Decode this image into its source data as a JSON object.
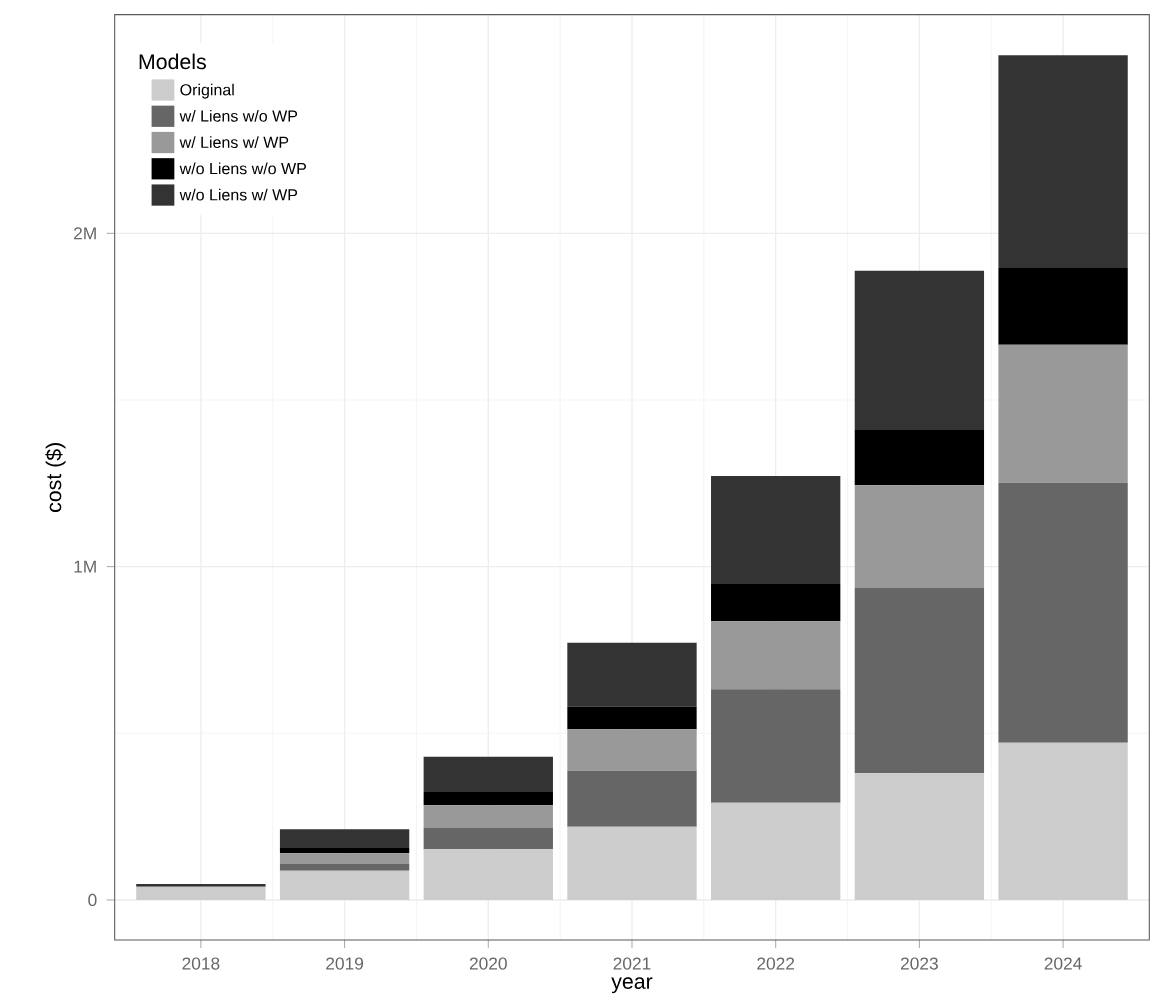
{
  "chart_data": {
    "type": "bar",
    "stacked": true,
    "xlabel": "year",
    "ylabel": "cost ($)",
    "legend_title": "Models",
    "categories": [
      "2018",
      "2019",
      "2020",
      "2021",
      "2022",
      "2023",
      "2024"
    ],
    "series": [
      {
        "name": "Original",
        "color": "#cccccc",
        "values": [
          40000,
          88000,
          152000,
          220000,
          292000,
          380000,
          472000
        ]
      },
      {
        "name": "w/ Liens w/o WP",
        "color": "#666666",
        "values": [
          0,
          20000,
          64000,
          168000,
          340000,
          556000,
          780000
        ]
      },
      {
        "name": "w/ Liens w/ WP",
        "color": "#999999",
        "values": [
          0,
          32000,
          68000,
          124000,
          204000,
          308000,
          414000
        ]
      },
      {
        "name": "w/o Liens w/o WP",
        "color": "#000000",
        "values": [
          0,
          16000,
          40000,
          68000,
          112000,
          166000,
          230000
        ]
      },
      {
        "name": "w/o Liens w/ WP",
        "color": "#333333",
        "values": [
          8000,
          56000,
          106000,
          192000,
          324000,
          478000,
          638000
        ]
      }
    ],
    "ylim": [
      -120000,
      2656000
    ],
    "yticks": [
      {
        "value": 0,
        "label": "0"
      },
      {
        "value": 1000000,
        "label": "1M"
      },
      {
        "value": 2000000,
        "label": "2M"
      }
    ],
    "grid": true,
    "legend": "top left"
  }
}
